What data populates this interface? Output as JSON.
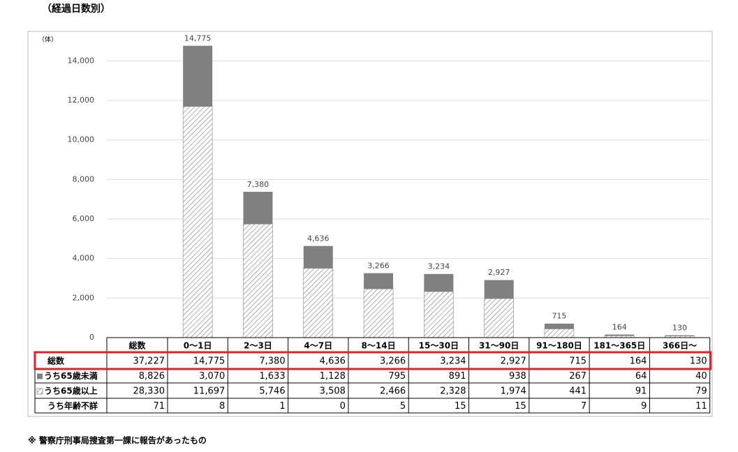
{
  "title": "（経過日数別）",
  "footnote": "※ 警察庁刑事局捜査第一課に報告があったもの",
  "chart_data": {
    "type": "bar",
    "stacked": true,
    "unit": "（体）",
    "first_column": "総数",
    "categories": [
      "0～1日",
      "2～3日",
      "4～7日",
      "8～14日",
      "15～30日",
      "31～90日",
      "91～180日",
      "181～365日",
      "366日～"
    ],
    "ylim": [
      0,
      15000
    ],
    "yticks": [
      0,
      {
        "value": 2000,
        "label": "2,000"
      },
      {
        "value": 4000,
        "label": "4,000"
      },
      {
        "value": 6000,
        "label": "6,000"
      },
      {
        "value": 8000,
        "label": "8,000"
      },
      {
        "value": 10000,
        "label": "10,000"
      },
      {
        "value": 12000,
        "label": "12,000"
      },
      {
        "value": 14000,
        "label": "14,000"
      }
    ],
    "grid": true,
    "totals": {
      "name": "総数",
      "total": 37227,
      "total_label": "37,227",
      "values": [
        14775,
        7380,
        4636,
        3266,
        3234,
        2927,
        715,
        164,
        130
      ],
      "value_labels": [
        "14,775",
        "7,380",
        "4,636",
        "3,266",
        "3,234",
        "2,927",
        "715",
        "164",
        "130"
      ]
    },
    "series": [
      {
        "name": "うち65歳未満",
        "color": "#808080",
        "total": 8826,
        "total_label": "8,826",
        "values": [
          3070,
          1633,
          1128,
          795,
          891,
          938,
          267,
          64,
          40
        ],
        "value_labels": [
          "3,070",
          "1,633",
          "1,128",
          "795",
          "891",
          "938",
          "267",
          "64",
          "40"
        ]
      },
      {
        "name": "うち65歳以上",
        "color": "#ffffff",
        "pattern": "hatch",
        "total": 28330,
        "total_label": "28,330",
        "values": [
          11697,
          5746,
          3508,
          2466,
          2328,
          1974,
          441,
          91,
          79
        ],
        "value_labels": [
          "11,697",
          "5,746",
          "3,508",
          "2,466",
          "2,328",
          "1,974",
          "441",
          "91",
          "79"
        ]
      },
      {
        "name": "うち年齢不詳",
        "total": 71,
        "values": [
          8,
          1,
          0,
          5,
          15,
          15,
          7,
          9,
          11
        ]
      }
    ]
  }
}
